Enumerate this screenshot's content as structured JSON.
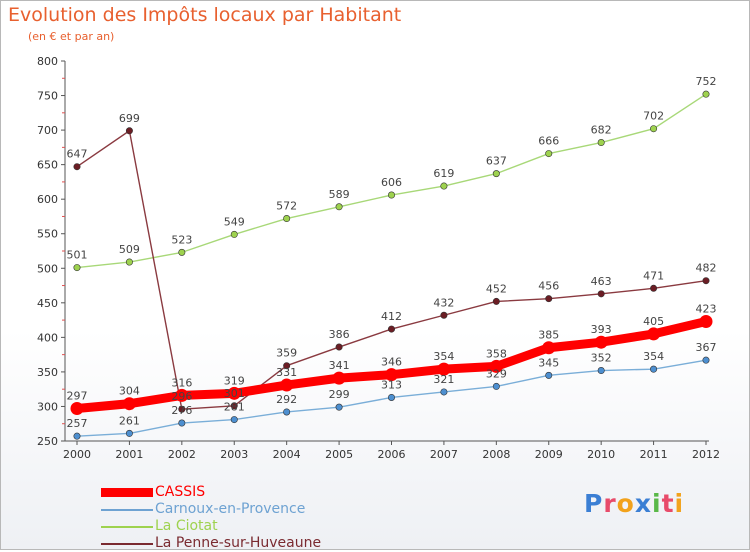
{
  "title": "Evolution des Impôts locaux par Habitant",
  "subtitle": "(en € et par an)",
  "chart_data": {
    "type": "line",
    "title": "Evolution des Impôts locaux par Habitant",
    "subtitle": "(en € et par an)",
    "xlabel": "",
    "ylabel": "",
    "ylim": [
      250,
      800
    ],
    "yticks": [
      "250",
      "300",
      "350",
      "400",
      "450",
      "500",
      "550",
      "600",
      "650",
      "700",
      "750",
      "800"
    ],
    "categories": [
      "2000",
      "2001",
      "2002",
      "2003",
      "2004",
      "2005",
      "2006",
      "2007",
      "2008",
      "2009",
      "2010",
      "2011",
      "2012"
    ],
    "grid": false,
    "legend_position": "bottom-left",
    "series": [
      {
        "name": "La Ciotat",
        "color": "#9ed24e",
        "line_color": "#a8d878",
        "values": [
          501,
          509,
          523,
          549,
          572,
          589,
          606,
          619,
          637,
          666,
          682,
          702,
          752
        ],
        "labels": [
          "501",
          "509",
          "523",
          "549",
          "572",
          "589",
          "606",
          "619",
          "637",
          "666",
          "682",
          "702",
          "752"
        ]
      },
      {
        "name": "La Penne-sur-Huveaune",
        "color": "#6b1d24",
        "line_color": "#8a3a40",
        "values": [
          647,
          699,
          296,
          301,
          359,
          386,
          412,
          432,
          452,
          456,
          463,
          471,
          482
        ],
        "labels": [
          "647",
          "699",
          "296",
          "301",
          "359",
          "386",
          "412",
          "432",
          "452",
          "456",
          "463",
          "471",
          "482"
        ]
      },
      {
        "name": "Carnoux-en-Provence",
        "color": "#4d8fd0",
        "line_color": "#7aaed8",
        "values": [
          257,
          261,
          276,
          281,
          292,
          299,
          313,
          321,
          329,
          345,
          352,
          354,
          367
        ],
        "labels": [
          "257",
          "261",
          "276",
          "281",
          "292",
          "299",
          "313",
          "321",
          "329",
          "345",
          "352",
          "354",
          "367"
        ]
      },
      {
        "name": "CASSIS",
        "color": "#ff0000",
        "line_color": "#ff0000",
        "values": [
          297,
          304,
          316,
          319,
          331,
          341,
          346,
          354,
          358,
          385,
          393,
          405,
          423
        ],
        "labels": [
          "297",
          "304",
          "316",
          "319",
          "331",
          "341",
          "346",
          "354",
          "358",
          "385",
          "393",
          "405",
          "423"
        ]
      }
    ]
  },
  "legend": [
    {
      "name": "CASSIS",
      "color": "#ff0000",
      "style": "thick"
    },
    {
      "name": "Carnoux-en-Provence",
      "color": "#6ea2d2",
      "style": "thin"
    },
    {
      "name": "La Ciotat",
      "color": "#9ed24e",
      "style": "thin"
    },
    {
      "name": "La Penne-sur-Huveaune",
      "color": "#7a2a30",
      "style": "thin"
    }
  ],
  "logo": {
    "letters": [
      "P",
      "r",
      "o",
      "x",
      "i",
      "t",
      "i"
    ],
    "colors": [
      "#3b7fd4",
      "#e84b6a",
      "#f2a21b",
      "#3b7fd4",
      "#59b848",
      "#e84b6a",
      "#f2a21b"
    ]
  }
}
